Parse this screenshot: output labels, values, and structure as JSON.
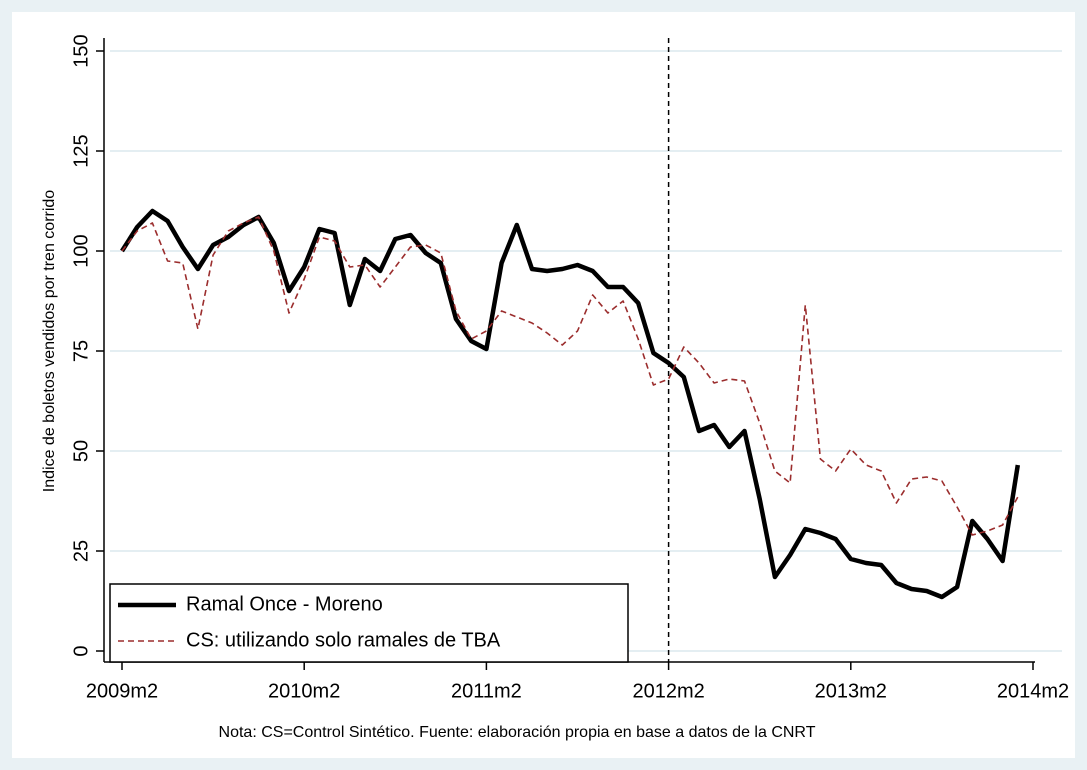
{
  "chart_data": {
    "type": "line",
    "y_label": "Indice de boletos vendidos por tren corrido",
    "note": "Nota: CS=Control Sintético. Fuente: elaboración propia en base a datos de la CNRT",
    "x": [
      589,
      590,
      591,
      592,
      593,
      594,
      595,
      596,
      597,
      598,
      599,
      600,
      601,
      602,
      603,
      604,
      605,
      606,
      607,
      608,
      609,
      610,
      611,
      612,
      613,
      614,
      615,
      616,
      617,
      618,
      619,
      620,
      621,
      622,
      623,
      624,
      625,
      626,
      627,
      628,
      629,
      630,
      631,
      632,
      633,
      634,
      635,
      636,
      637,
      638,
      639,
      640,
      641,
      642,
      643,
      644,
      645,
      646,
      647,
      648
    ],
    "xlim": [
      589,
      649
    ],
    "xticks": [
      {
        "value": 589,
        "label": "2009m2"
      },
      {
        "value": 601,
        "label": "2010m2"
      },
      {
        "value": 613,
        "label": "2011m2"
      },
      {
        "value": 625,
        "label": "2012m2"
      },
      {
        "value": 637,
        "label": "2013m2"
      },
      {
        "value": 649,
        "label": "2014m2"
      }
    ],
    "ylim": [
      0,
      150
    ],
    "yticks": [
      0,
      25,
      50,
      75,
      100,
      125,
      150
    ],
    "grid": true,
    "vline": 625,
    "legend": "bottom-left",
    "series": [
      {
        "name": "Ramal Once - Moreno",
        "color": "#000000",
        "dash": false,
        "values": [
          100,
          106,
          110,
          107.5,
          101,
          95.5,
          101.5,
          103.5,
          106.5,
          108.5,
          102,
          90,
          96,
          105.5,
          104.5,
          86.5,
          98,
          95,
          103,
          104,
          99.5,
          97,
          83,
          77.5,
          75.5,
          97,
          106.5,
          95.5,
          95,
          95.5,
          96.5,
          95,
          91,
          91,
          87,
          74.5,
          72,
          68.5,
          55,
          56.5,
          51,
          55,
          38,
          18.5,
          24,
          30.5,
          29.5,
          28,
          23,
          22,
          21.5,
          17,
          15.5,
          15,
          13.5,
          16,
          32.5,
          28,
          22.5,
          46.5
        ]
      },
      {
        "name": "CS: utilizando solo ramales de TBA",
        "color": "#9b2d2d",
        "dash": true,
        "values": [
          100,
          105,
          107,
          97.5,
          97,
          80.5,
          99,
          105,
          107,
          108.5,
          100,
          84.5,
          93,
          103.5,
          102.5,
          96,
          96.5,
          91,
          96,
          101,
          101.5,
          99.5,
          85,
          78,
          80,
          85,
          83.5,
          82,
          79.5,
          76.5,
          80,
          89,
          84.5,
          87.5,
          78,
          66.5,
          68,
          76,
          72,
          67,
          68,
          67.5,
          57,
          45,
          42,
          86.5,
          48,
          45,
          50.5,
          46.5,
          45,
          37,
          43,
          43.5,
          42.5,
          36,
          29,
          30,
          31.5,
          38.5
        ]
      }
    ]
  }
}
